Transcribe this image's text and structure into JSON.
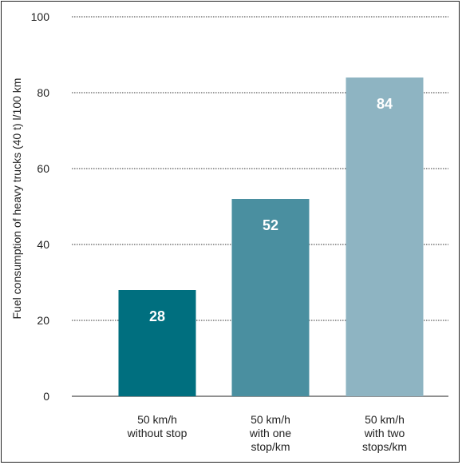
{
  "chart_data": {
    "type": "bar",
    "title": "",
    "xlabel": "",
    "ylabel": "Fuel consumption of heavy trucks (40 t) l/100 km",
    "ylim": [
      0,
      100
    ],
    "yticks": [
      0,
      20,
      40,
      60,
      80,
      100
    ],
    "grid": true,
    "categories": [
      [
        "50 km/h",
        "without stop"
      ],
      [
        "50 km/h",
        "with one",
        "stop/km"
      ],
      [
        "50 km/h",
        "with two",
        "stops/km"
      ]
    ],
    "values": [
      28,
      52,
      84
    ],
    "colors": [
      "#006f7f",
      "#4a8fa0",
      "#8eb4c2"
    ]
  }
}
